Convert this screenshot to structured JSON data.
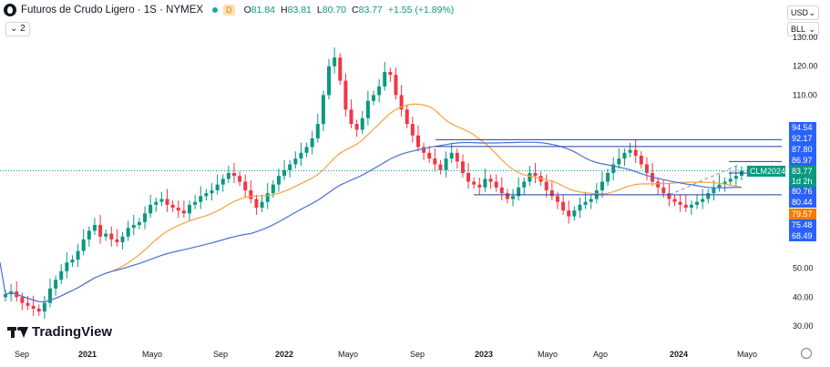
{
  "header": {
    "title": "Futuros de Crudo Ligero · 1S · NYMEX",
    "d_badge": "D",
    "ohlc": [
      {
        "k": "O",
        "v": "81.84"
      },
      {
        "k": "H",
        "v": "83.81"
      },
      {
        "k": "L",
        "v": "80.70"
      },
      {
        "k": "C",
        "v": "83.77"
      }
    ],
    "change": "+1.55 (+1.89%)",
    "collapse_label": "2"
  },
  "currency_select": "USD",
  "unit_select": "BLL",
  "branding": "TradingView",
  "colors": {
    "up": "#089981",
    "down": "#f23645",
    "ma_orange": "#f7a23b",
    "ma_blue": "#4a6fd8",
    "label_blue": "#2962ff",
    "level_line": "#1e3fa8",
    "trend_line": "#7b8ec9",
    "label_orange": "#f57c00",
    "label_green": "#089981"
  },
  "chart_data": {
    "type": "candlestick",
    "title": "Futuros de Crudo Ligero · 1S · NYMEX",
    "ylim": [
      25,
      131
    ],
    "y_ticks": [
      "130.00",
      "120.00",
      "110.00",
      "50.00",
      "40.00",
      "30.00"
    ],
    "x_ticks": [
      "Sep",
      "2021",
      "Mayo",
      "Sep",
      "2022",
      "Mayo",
      "Sep",
      "2023",
      "Mayo",
      "Ago",
      "2024",
      "Mayo"
    ],
    "x_range": [
      "2020-08",
      "2024-06"
    ],
    "weekly_closes_approx": [
      41,
      42,
      40,
      38,
      37,
      36,
      35,
      38,
      43,
      46,
      49,
      52,
      53,
      56,
      60,
      63,
      65,
      61,
      62,
      60,
      59,
      61,
      64,
      65,
      66,
      69,
      72,
      73,
      74,
      72,
      71,
      70,
      69,
      72,
      73,
      75,
      76,
      77,
      79,
      81,
      83,
      82,
      80,
      77,
      74,
      71,
      73,
      76,
      79,
      82,
      84,
      86,
      88,
      90,
      92,
      95,
      100,
      110,
      120,
      123,
      115,
      105,
      100,
      98,
      102,
      108,
      110,
      113,
      118,
      117,
      110,
      105,
      100,
      96,
      92,
      90,
      88,
      86,
      84,
      88,
      90,
      87,
      83,
      80,
      79,
      78,
      81,
      80,
      78,
      76,
      74,
      75,
      78,
      80,
      83,
      82,
      80,
      77,
      75,
      73,
      70,
      68,
      70,
      72,
      73,
      74,
      77,
      80,
      83,
      86,
      88,
      90,
      91,
      89,
      86,
      83,
      80,
      78,
      76,
      74,
      73,
      72,
      71,
      72,
      73,
      74,
      76,
      78,
      79,
      80,
      81,
      82,
      83.77
    ],
    "levels": [
      {
        "label": "94.54",
        "type": "label"
      },
      {
        "label": "92.17",
        "type": "label"
      },
      {
        "label": "87.80",
        "type": "level"
      },
      {
        "label": "86.97",
        "type": "label"
      },
      {
        "label": "83.77",
        "type": "last"
      },
      {
        "label": "80.76",
        "type": "label"
      },
      {
        "label": "80.44",
        "type": "label"
      },
      {
        "label": "79.57",
        "type": "ma"
      },
      {
        "label": "75.48",
        "type": "label"
      },
      {
        "label": "68.49",
        "type": "label"
      }
    ],
    "last_price_tag": "CLM2024",
    "countdown": "1d 2h",
    "series": [
      {
        "name": "MA",
        "color": "#f7a23b"
      },
      {
        "name": "MA",
        "color": "#4a6fd8"
      }
    ]
  }
}
